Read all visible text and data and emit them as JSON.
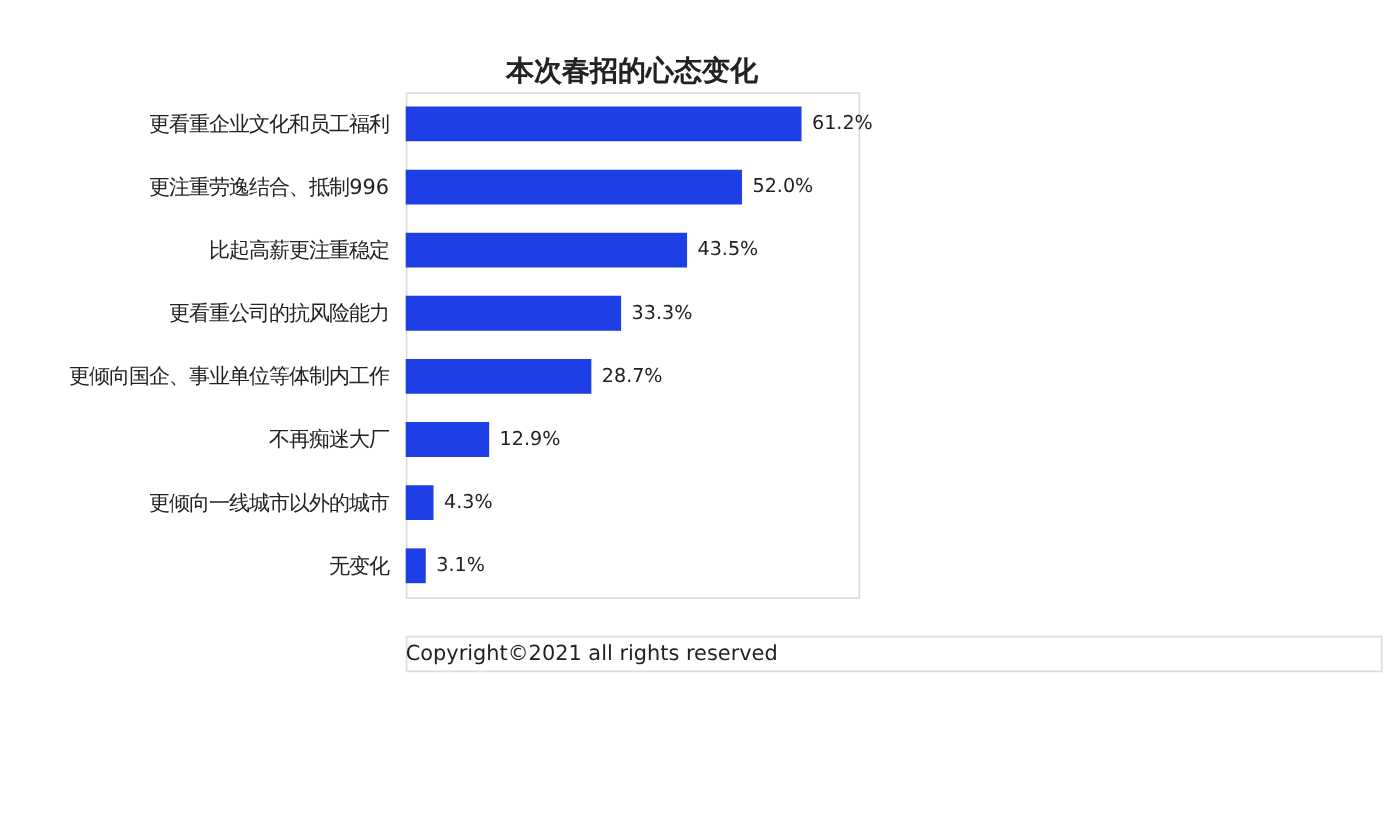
{
  "chart_data": {
    "type": "bar",
    "orientation": "horizontal",
    "title": "本次春招的心态变化",
    "categories": [
      "更看重企业文化和员工福利",
      "更注重劳逸结合、抵制996",
      "比起高薪更注重稳定",
      "更看重公司的抗风险能力",
      "更倾向国企、事业单位等体制内工作",
      "不再痴迷大厂",
      "更倾向一线城市以外的城市",
      "无变化"
    ],
    "values": [
      61.2,
      52.0,
      43.5,
      33.3,
      28.7,
      12.9,
      4.3,
      3.1
    ],
    "value_labels": [
      "61.2%",
      "52.0%",
      "43.5%",
      "33.3%",
      "28.7%",
      "12.9%",
      "4.3%",
      "3.1%"
    ],
    "color": "#1f3fe6",
    "xlim": [
      0,
      70
    ],
    "tick_labels": "y",
    "grid": false,
    "annotations": [
      "Copyright©2021 all rights reserved"
    ]
  }
}
